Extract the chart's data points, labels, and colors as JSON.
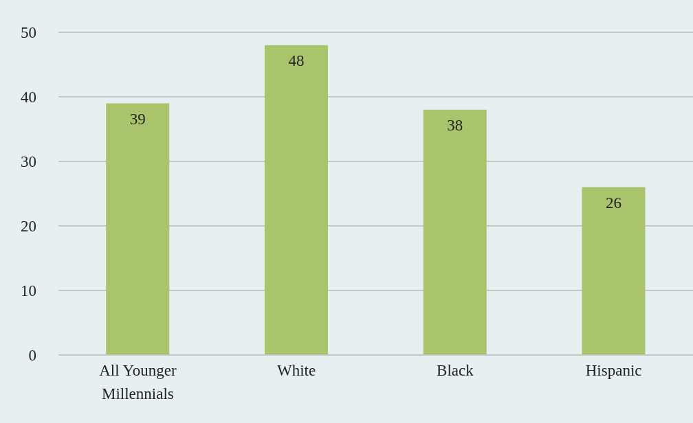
{
  "chart_data": {
    "type": "bar",
    "categories": [
      "All Younger Millennials",
      "White",
      "Black",
      "Hispanic"
    ],
    "values": [
      39,
      48,
      38,
      26
    ],
    "color": "#a9c46b",
    "ylim": [
      0,
      50
    ],
    "yticks": [
      0,
      10,
      20,
      30,
      40,
      50
    ],
    "grid": "y",
    "data_labels": true
  }
}
